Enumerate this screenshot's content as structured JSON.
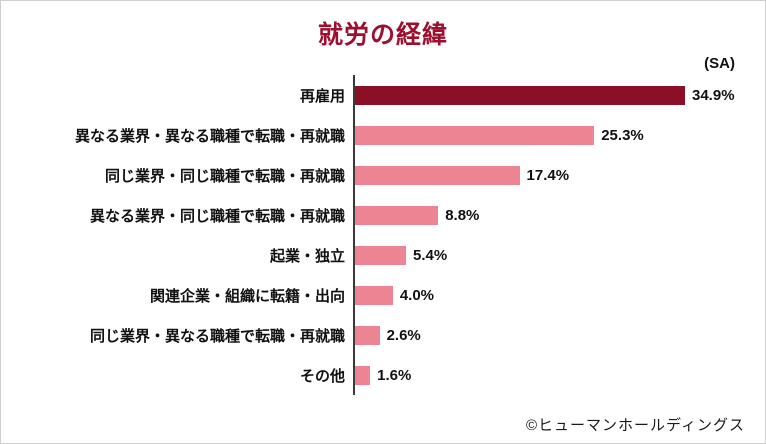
{
  "chart": {
    "title": "就労の経緯",
    "sa_note": "(SA)",
    "copyright": "©ヒューマンホールディングス"
  },
  "chart_data": {
    "type": "bar",
    "orientation": "horizontal",
    "title": "就労の経緯",
    "subtitle": "(SA)",
    "categories": [
      "再雇用",
      "異なる業界・異なる職種で転職・再就職",
      "同じ業界・同じ職種で転職・再就職",
      "異なる業界・同じ職種で転職・再就職",
      "起業・独立",
      "関連企業・組織に転籍・出向",
      "同じ業界・異なる職種で転職・再就職",
      "その他"
    ],
    "values": [
      34.9,
      25.3,
      17.4,
      8.8,
      5.4,
      4.0,
      2.6,
      1.6
    ],
    "value_labels": [
      "34.9%",
      "25.3%",
      "17.4%",
      "8.8%",
      "5.4%",
      "4.0%",
      "2.6%",
      "1.6%"
    ],
    "xlabel": "",
    "ylabel": "",
    "xlim": [
      0,
      40
    ],
    "grid": false,
    "legend": false,
    "highlight_index": 0,
    "colors": {
      "highlight": "#8b0f26",
      "normal": "#ec8493",
      "title": "#9e0e2e",
      "axis_line": "#3a3a3a"
    }
  }
}
